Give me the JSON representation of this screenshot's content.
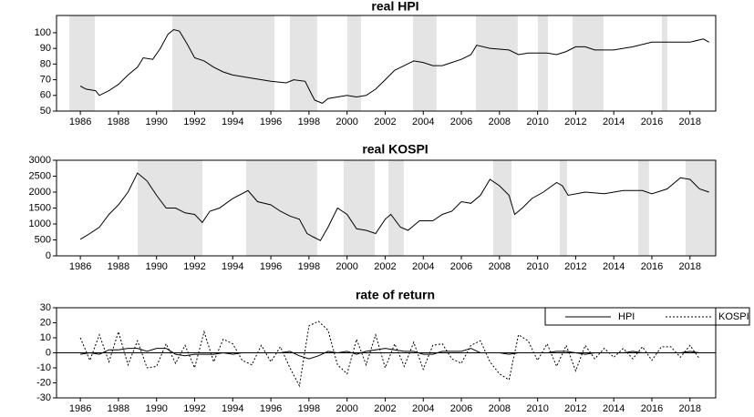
{
  "chart_data": [
    {
      "type": "line",
      "title": "real HPI",
      "x": [
        1986.0,
        1986.3,
        1986.8,
        1987.0,
        1987.5,
        1988.0,
        1988.5,
        1989.0,
        1989.3,
        1989.8,
        1990.2,
        1990.6,
        1990.9,
        1991.2,
        1991.6,
        1992.0,
        1992.5,
        1993.0,
        1993.5,
        1994.0,
        1995.0,
        1996.0,
        1996.8,
        1997.2,
        1997.8,
        1998.0,
        1998.3,
        1998.7,
        1999.0,
        1999.5,
        2000.0,
        2000.5,
        2001.0,
        2001.5,
        2002.0,
        2002.5,
        2003.0,
        2003.5,
        2004.0,
        2004.5,
        2005.0,
        2005.5,
        2006.0,
        2006.5,
        2006.8,
        2007.5,
        2008.5,
        2009.0,
        2009.5,
        2010.5,
        2011.0,
        2011.5,
        2012.0,
        2012.5,
        2013.0,
        2014.0,
        2015.0,
        2016.0,
        2017.0,
        2018.0,
        2018.7,
        2019.0
      ],
      "values": [
        66,
        64,
        63,
        60,
        63,
        67,
        73,
        78,
        84,
        83,
        90,
        99,
        102,
        101,
        93,
        84,
        82,
        78,
        75,
        73,
        71,
        69,
        68,
        70,
        69,
        64,
        57,
        55,
        58,
        59,
        60,
        59,
        60,
        64,
        70,
        76,
        79,
        82,
        81,
        79,
        79,
        81,
        83,
        86,
        92,
        90,
        89,
        86,
        87,
        87,
        86,
        88,
        91,
        91,
        89,
        89,
        91,
        94,
        94,
        94,
        96,
        94
      ],
      "color": "#000000",
      "shaded_periods": [
        [
          1985.42,
          1986.76
        ],
        [
          1990.83,
          1996.19
        ],
        [
          1997.0,
          1998.43
        ],
        [
          2000.01,
          2000.73
        ],
        [
          2003.46,
          2004.7
        ],
        [
          2006.76,
          2008.96
        ],
        [
          2010.01,
          2010.54
        ],
        [
          2011.83,
          2013.46
        ],
        [
          2016.52,
          2016.81
        ]
      ],
      "xlim": [
        1984.75,
        2019.35
      ],
      "xticks": [
        1986,
        1988,
        1990,
        1992,
        1994,
        1996,
        1998,
        2000,
        2002,
        2004,
        2006,
        2008,
        2010,
        2012,
        2014,
        2016,
        2018
      ],
      "ylim": [
        50,
        111
      ],
      "yticks": [
        50,
        60,
        70,
        80,
        90,
        100
      ]
    },
    {
      "type": "line",
      "title": "real KOSPI",
      "x": [
        1986.0,
        1986.5,
        1987.0,
        1987.5,
        1988.0,
        1988.5,
        1989.0,
        1989.5,
        1990.0,
        1990.5,
        1991.0,
        1991.5,
        1992.0,
        1992.4,
        1992.8,
        1993.3,
        1994.0,
        1994.8,
        1995.3,
        1996.0,
        1996.5,
        1997.0,
        1997.5,
        1997.9,
        1998.2,
        1998.6,
        1999.0,
        1999.5,
        2000.0,
        2000.5,
        2001.0,
        2001.5,
        2002.0,
        2002.3,
        2002.8,
        2003.2,
        2003.8,
        2004.5,
        2005.0,
        2005.5,
        2006.0,
        2006.5,
        2007.0,
        2007.5,
        2008.0,
        2008.5,
        2008.8,
        2009.2,
        2009.7,
        2010.3,
        2011.0,
        2011.3,
        2011.6,
        2012.5,
        2013.5,
        2014.5,
        2015.5,
        2016.0,
        2016.8,
        2017.5,
        2018.0,
        2018.5,
        2019.0
      ],
      "values": [
        520,
        700,
        900,
        1300,
        1600,
        2000,
        2600,
        2350,
        1900,
        1500,
        1500,
        1350,
        1300,
        1050,
        1400,
        1500,
        1800,
        2050,
        1700,
        1600,
        1400,
        1250,
        1150,
        700,
        600,
        480,
        900,
        1500,
        1300,
        850,
        800,
        700,
        1150,
        1300,
        900,
        800,
        1100,
        1100,
        1300,
        1400,
        1700,
        1650,
        1900,
        2400,
        2200,
        1900,
        1300,
        1500,
        1800,
        2000,
        2300,
        2200,
        1900,
        2000,
        1950,
        2050,
        2050,
        1950,
        2100,
        2450,
        2400,
        2100,
        2000
      ],
      "color": "#000000",
      "shaded_periods": [
        [
          1989.01,
          1992.41
        ],
        [
          1994.7,
          1998.43
        ],
        [
          1999.82,
          2001.45
        ],
        [
          2002.17,
          2002.98
        ],
        [
          2007.67,
          2008.63
        ],
        [
          2011.16,
          2011.55
        ],
        [
          2015.28,
          2015.85
        ],
        [
          2017.77,
          2019.35
        ]
      ],
      "xlim": [
        1984.75,
        2019.35
      ],
      "xticks": [
        1986,
        1988,
        1990,
        1992,
        1994,
        1996,
        1998,
        2000,
        2002,
        2004,
        2006,
        2008,
        2010,
        2012,
        2014,
        2016,
        2018
      ],
      "ylim": [
        0,
        3000
      ],
      "yticks": [
        0,
        500,
        1000,
        1500,
        2000,
        2500,
        3000
      ]
    },
    {
      "type": "line",
      "title": "rate of return",
      "x": [
        1986.0,
        1986.5,
        1987.0,
        1987.5,
        1988.0,
        1988.5,
        1989.0,
        1989.5,
        1990.0,
        1990.5,
        1991.0,
        1991.5,
        1992.0,
        1992.5,
        1993.0,
        1993.5,
        1994.0,
        1994.5,
        1995.0,
        1995.5,
        1996.0,
        1996.5,
        1997.0,
        1997.5,
        1998.0,
        1998.5,
        1999.0,
        1999.5,
        2000.0,
        2000.5,
        2001.0,
        2001.5,
        2002.0,
        2002.5,
        2003.0,
        2003.5,
        2004.0,
        2004.5,
        2005.0,
        2005.5,
        2006.0,
        2006.5,
        2007.0,
        2007.5,
        2008.0,
        2008.5,
        2009.0,
        2009.5,
        2010.0,
        2010.5,
        2011.0,
        2011.5,
        2012.0,
        2012.5,
        2013.0,
        2013.5,
        2014.0,
        2014.5,
        2015.0,
        2015.5,
        2016.0,
        2016.5,
        2017.0,
        2017.5,
        2018.0,
        2018.5
      ],
      "series": [
        {
          "name": "HPI",
          "color": "#000000",
          "dash": false,
          "values": [
            -1,
            0,
            -1,
            2,
            2,
            3,
            3,
            1,
            3,
            3,
            -1,
            -2,
            -1,
            -1,
            -1,
            0,
            -1,
            0,
            0,
            0,
            0,
            0,
            1,
            -2,
            -4,
            -2,
            1,
            0,
            1,
            -1,
            1,
            2,
            3,
            2,
            1,
            1,
            -1,
            -1,
            1,
            1,
            1,
            3,
            0,
            0,
            0,
            -1,
            0,
            0,
            0,
            0,
            1,
            1,
            0,
            -1,
            0,
            0,
            0,
            0,
            1,
            0,
            0,
            0,
            0,
            0,
            1,
            0
          ]
        },
        {
          "name": "KOSPI",
          "color": "#000000",
          "dash": true,
          "values": [
            10,
            -5,
            12,
            -6,
            14,
            -8,
            8,
            -10,
            -9,
            6,
            -7,
            5,
            -10,
            14,
            -6,
            9,
            6,
            -5,
            -8,
            5,
            -6,
            4,
            -10,
            -22,
            18,
            21,
            15,
            -8,
            -14,
            9,
            -8,
            12,
            -10,
            6,
            -9,
            7,
            -11,
            5,
            6,
            -4,
            -7,
            5,
            8,
            -6,
            -14,
            -18,
            12,
            8,
            -5,
            6,
            -9,
            5,
            -12,
            5,
            -4,
            3,
            -3,
            3,
            -4,
            4,
            -5,
            4,
            4,
            -3,
            5,
            -4
          ]
        }
      ],
      "legend": "upper right",
      "xlim": [
        1984.75,
        2019.35
      ],
      "xticks": [
        1986,
        1988,
        1990,
        1992,
        1994,
        1996,
        1998,
        2000,
        2002,
        2004,
        2006,
        2008,
        2010,
        2012,
        2014,
        2016,
        2018
      ],
      "ylim": [
        -30,
        30
      ],
      "yticks": [
        -30,
        -20,
        -10,
        0,
        10,
        20,
        30
      ]
    }
  ]
}
